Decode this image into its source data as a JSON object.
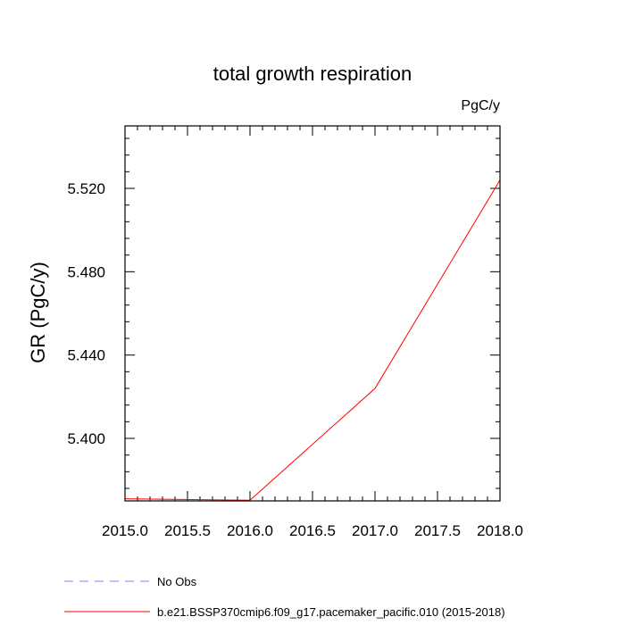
{
  "chart_data": {
    "type": "line",
    "title": "total growth respiration",
    "units_label": "PgC/y",
    "xlabel": "",
    "ylabel": "GR  (PgC/y)",
    "xlim": [
      2015.0,
      2018.0
    ],
    "ylim": [
      5.37,
      5.55
    ],
    "x_ticks": [
      "2015.0",
      "2015.5",
      "2016.0",
      "2016.5",
      "2017.0",
      "2017.5",
      "2018.0"
    ],
    "y_ticks": [
      "5.400",
      "5.440",
      "5.480",
      "5.520"
    ],
    "grid": false,
    "legend": {
      "placement": "bottom",
      "entries": [
        {
          "label": "No Obs",
          "color": "#8080ff",
          "dash": true
        },
        {
          "label": "b.e21.BSSP370cmip6.f09_g17.pacemaker_pacific.010 (2015-2018)",
          "color": "#ff0000",
          "dash": false
        }
      ]
    },
    "series": [
      {
        "name": "b.e21.BSSP370cmip6.f09_g17.pacemaker_pacific.010 (2015-2018)",
        "color": "#ff0000",
        "x": [
          2015.0,
          2016.0,
          2017.0,
          2018.0
        ],
        "y": [
          5.371,
          5.3703,
          5.424,
          5.524
        ]
      }
    ]
  }
}
